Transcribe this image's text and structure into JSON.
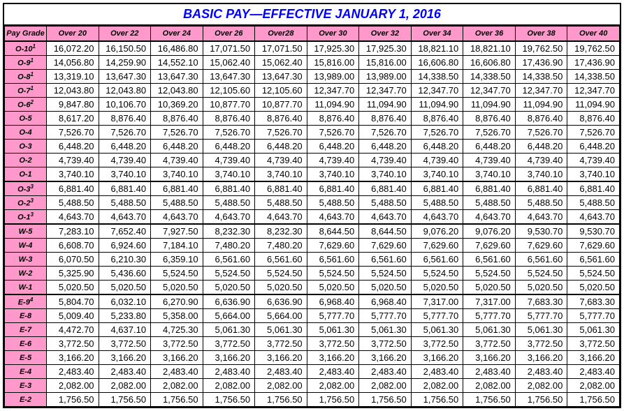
{
  "title": "BASIC PAY—EFFECTIVE JANUARY 1, 2016",
  "columns": [
    "Pay Grade",
    "Over 20",
    "Over 22",
    "Over 24",
    "Over 26",
    "Over28",
    "Over 30",
    "Over 32",
    "Over 34",
    "Over 36",
    "Over 38",
    "Over 40"
  ],
  "header_bg": "#ff99cc",
  "title_color": "#0000ff",
  "rows": [
    {
      "pg": "O-10",
      "sup": "1",
      "v": [
        "16,072.20",
        "16,150.50",
        "16,486.80",
        "17,071.50",
        "17,071.50",
        "17,925.30",
        "17,925.30",
        "18,821.10",
        "18,821.10",
        "19,762.50",
        "19,762.50"
      ],
      "group": true
    },
    {
      "pg": "O-9",
      "sup": "1",
      "v": [
        "14,056.80",
        "14,259.90",
        "14,552.10",
        "15,062.40",
        "15,062.40",
        "15,816.00",
        "15,816.00",
        "16,606.80",
        "16,606.80",
        "17,436.90",
        "17,436.90"
      ]
    },
    {
      "pg": "O-8",
      "sup": "1",
      "v": [
        "13,319.10",
        "13,647.30",
        "13,647.30",
        "13,647.30",
        "13,647.30",
        "13,989.00",
        "13,989.00",
        "14,338.50",
        "14,338.50",
        "14,338.50",
        "14,338.50"
      ]
    },
    {
      "pg": "O-7",
      "sup": "1",
      "v": [
        "12,043.80",
        "12,043.80",
        "12,043.80",
        "12,105.60",
        "12,105.60",
        "12,347.70",
        "12,347.70",
        "12,347.70",
        "12,347.70",
        "12,347.70",
        "12,347.70"
      ]
    },
    {
      "pg": "O-6",
      "sup": "2",
      "v": [
        "9,847.80",
        "10,106.70",
        "10,369.20",
        "10,877.70",
        "10,877.70",
        "11,094.90",
        "11,094.90",
        "11,094.90",
        "11,094.90",
        "11,094.90",
        "11,094.90"
      ]
    },
    {
      "pg": "O-5",
      "v": [
        "8,617.20",
        "8,876.40",
        "8,876.40",
        "8,876.40",
        "8,876.40",
        "8,876.40",
        "8,876.40",
        "8,876.40",
        "8,876.40",
        "8,876.40",
        "8,876.40"
      ]
    },
    {
      "pg": "O-4",
      "v": [
        "7,526.70",
        "7,526.70",
        "7,526.70",
        "7,526.70",
        "7,526.70",
        "7,526.70",
        "7,526.70",
        "7,526.70",
        "7,526.70",
        "7,526.70",
        "7,526.70"
      ]
    },
    {
      "pg": "O-3",
      "v": [
        "6,448.20",
        "6,448.20",
        "6,448.20",
        "6,448.20",
        "6,448.20",
        "6,448.20",
        "6,448.20",
        "6,448.20",
        "6,448.20",
        "6,448.20",
        "6,448.20"
      ]
    },
    {
      "pg": "O-2",
      "v": [
        "4,739.40",
        "4,739.40",
        "4,739.40",
        "4,739.40",
        "4,739.40",
        "4,739.40",
        "4,739.40",
        "4,739.40",
        "4,739.40",
        "4,739.40",
        "4,739.40"
      ]
    },
    {
      "pg": "O-1",
      "v": [
        "3,740.10",
        "3,740.10",
        "3,740.10",
        "3,740.10",
        "3,740.10",
        "3,740.10",
        "3,740.10",
        "3,740.10",
        "3,740.10",
        "3,740.10",
        "3,740.10"
      ]
    },
    {
      "pg": "O-3",
      "sup": "3",
      "v": [
        "6,881.40",
        "6,881.40",
        "6,881.40",
        "6,881.40",
        "6,881.40",
        "6,881.40",
        "6,881.40",
        "6,881.40",
        "6,881.40",
        "6,881.40",
        "6,881.40"
      ],
      "group": true
    },
    {
      "pg": "O-2",
      "sup": "3",
      "v": [
        "5,488.50",
        "5,488.50",
        "5,488.50",
        "5,488.50",
        "5,488.50",
        "5,488.50",
        "5,488.50",
        "5,488.50",
        "5,488.50",
        "5,488.50",
        "5,488.50"
      ]
    },
    {
      "pg": "O-1",
      "sup": "3",
      "v": [
        "4,643.70",
        "4,643.70",
        "4,643.70",
        "4,643.70",
        "4,643.70",
        "4,643.70",
        "4,643.70",
        "4,643.70",
        "4,643.70",
        "4,643.70",
        "4,643.70"
      ]
    },
    {
      "pg": "W-5",
      "v": [
        "7,283.10",
        "7,652.40",
        "7,927.50",
        "8,232.30",
        "8,232.30",
        "8,644.50",
        "8,644.50",
        "9,076.20",
        "9,076.20",
        "9,530.70",
        "9,530.70"
      ],
      "group": true
    },
    {
      "pg": "W-4",
      "v": [
        "6,608.70",
        "6,924.60",
        "7,184.10",
        "7,480.20",
        "7,480.20",
        "7,629.60",
        "7,629.60",
        "7,629.60",
        "7,629.60",
        "7,629.60",
        "7,629.60"
      ]
    },
    {
      "pg": "W-3",
      "v": [
        "6,070.50",
        "6,210.30",
        "6,359.10",
        "6,561.60",
        "6,561.60",
        "6,561.60",
        "6,561.60",
        "6,561.60",
        "6,561.60",
        "6,561.60",
        "6,561.60"
      ]
    },
    {
      "pg": "W-2",
      "v": [
        "5,325.90",
        "5,436.60",
        "5,524.50",
        "5,524.50",
        "5,524.50",
        "5,524.50",
        "5,524.50",
        "5,524.50",
        "5,524.50",
        "5,524.50",
        "5,524.50"
      ]
    },
    {
      "pg": "W-1",
      "v": [
        "5,020.50",
        "5,020.50",
        "5,020.50",
        "5,020.50",
        "5,020.50",
        "5,020.50",
        "5,020.50",
        "5,020.50",
        "5,020.50",
        "5,020.50",
        "5,020.50"
      ]
    },
    {
      "pg": "E-9",
      "sup": "4",
      "v": [
        "5,804.70",
        "6,032.10",
        "6,270.90",
        "6,636.90",
        "6,636.90",
        "6,968.40",
        "6,968.40",
        "7,317.00",
        "7,317.00",
        "7,683.30",
        "7,683.30"
      ],
      "group": true
    },
    {
      "pg": "E-8",
      "v": [
        "5,009.40",
        "5,233.80",
        "5,358.00",
        "5,664.00",
        "5,664.00",
        "5,777.70",
        "5,777.70",
        "5,777.70",
        "5,777.70",
        "5,777.70",
        "5,777.70"
      ]
    },
    {
      "pg": "E-7",
      "v": [
        "4,472.70",
        "4,637.10",
        "4,725.30",
        "5,061.30",
        "5,061.30",
        "5,061.30",
        "5,061.30",
        "5,061.30",
        "5,061.30",
        "5,061.30",
        "5,061.30"
      ]
    },
    {
      "pg": "E-6",
      "v": [
        "3,772.50",
        "3,772.50",
        "3,772.50",
        "3,772.50",
        "3,772.50",
        "3,772.50",
        "3,772.50",
        "3,772.50",
        "3,772.50",
        "3,772.50",
        "3,772.50"
      ]
    },
    {
      "pg": "E-5",
      "v": [
        "3,166.20",
        "3,166.20",
        "3,166.20",
        "3,166.20",
        "3,166.20",
        "3,166.20",
        "3,166.20",
        "3,166.20",
        "3,166.20",
        "3,166.20",
        "3,166.20"
      ]
    },
    {
      "pg": "E-4",
      "v": [
        "2,483.40",
        "2,483.40",
        "2,483.40",
        "2,483.40",
        "2,483.40",
        "2,483.40",
        "2,483.40",
        "2,483.40",
        "2,483.40",
        "2,483.40",
        "2,483.40"
      ]
    },
    {
      "pg": "E-3",
      "v": [
        "2,082.00",
        "2,082.00",
        "2,082.00",
        "2,082.00",
        "2,082.00",
        "2,082.00",
        "2,082.00",
        "2,082.00",
        "2,082.00",
        "2,082.00",
        "2,082.00"
      ]
    },
    {
      "pg": "E-2",
      "v": [
        "1,756.50",
        "1,756.50",
        "1,756.50",
        "1,756.50",
        "1,756.50",
        "1,756.50",
        "1,756.50",
        "1,756.50",
        "1,756.50",
        "1,756.50",
        "1,756.50"
      ]
    }
  ]
}
